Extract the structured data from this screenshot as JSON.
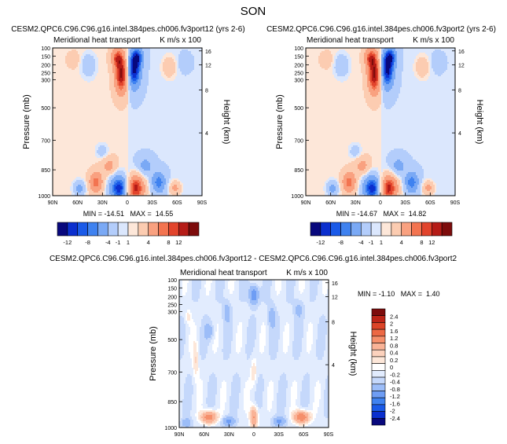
{
  "figure_title": "SON",
  "colors": {
    "ticks_12": [
      "#08087d",
      "#0b2fce",
      "#1a5ae8",
      "#3f82f0",
      "#7aa9f5",
      "#b3cdfb",
      "#dbe7fd",
      "#fde7d9",
      "#fcccb1",
      "#f9a180",
      "#f37450",
      "#e2442c",
      "#b51c17",
      "#7d0c0c"
    ],
    "ticks_diff": [
      "#08087d",
      "#0b2fce",
      "#1a5ae8",
      "#3f82f0",
      "#6e9df4",
      "#9cbdf8",
      "#c5d8fb",
      "#e2ecfe",
      "#ffffff",
      "#fde7d9",
      "#fcd2bd",
      "#f9b397",
      "#f58f6b",
      "#ec6844",
      "#dc4427",
      "#bd2417",
      "#7d0c0c"
    ]
  },
  "chart_data": [
    {
      "id": "top-left",
      "type": "heatmap",
      "title": "CESM2.QPC6.C96.C96.g16.intel.384pes.ch006.fv3port12 (yrs 2-6)",
      "left_label": "Meridional heat transport",
      "right_label": "K m/s x 100",
      "ylabel": "Pressure (mb)",
      "ylabel_right": "Height (km)",
      "y_ticks": [
        "100",
        "150",
        "200",
        "250",
        "300",
        "500",
        "700",
        "850",
        "1000"
      ],
      "y_ticks_right": [
        "16",
        "12",
        "8",
        "4"
      ],
      "x_ticks": [
        "90N",
        "60N",
        "30N",
        "0",
        "30S",
        "60S",
        "90S"
      ],
      "min": "-14.51",
      "max": "14.55",
      "stats": "MIN = -14.51   MAX =  14.55",
      "levels": [
        "-12",
        "-8",
        "-4",
        "-1",
        "1",
        "4",
        "8",
        "12"
      ],
      "vmax": 14
    },
    {
      "id": "top-right",
      "type": "heatmap",
      "title": "CESM2.QPC6.C96.C96.g16.intel.384pes.ch006.fv3port2 (yrs 2-6)",
      "left_label": "Meridional heat transport",
      "right_label": "K m/s x 100",
      "ylabel": "Pressure (mb)",
      "ylabel_right": "Height (km)",
      "y_ticks": [
        "100",
        "150",
        "200",
        "250",
        "300",
        "500",
        "700",
        "850",
        "1000"
      ],
      "y_ticks_right": [
        "16",
        "12",
        "8",
        "4"
      ],
      "x_ticks": [
        "90N",
        "60N",
        "30N",
        "0",
        "30S",
        "60S",
        "90S"
      ],
      "min": "-14.67",
      "max": "14.82",
      "stats": "MIN = -14.67   MAX =  14.82",
      "levels": [
        "-12",
        "-8",
        "-4",
        "-1",
        "1",
        "4",
        "8",
        "12"
      ],
      "vmax": 14
    },
    {
      "id": "difference",
      "type": "heatmap",
      "title": "CESM2.QPC6.C96.C96.g16.intel.384pes.ch006.fv3port12 - CESM2.QPC6.C96.C96.g16.intel.384pes.ch006.fv3port2",
      "left_label": "Meridional heat transport",
      "right_label": "K m/s x 100",
      "ylabel": "Pressure (mb)",
      "ylabel_right": "Height (km)",
      "y_ticks": [
        "100",
        "150",
        "200",
        "250",
        "300",
        "500",
        "700",
        "850",
        "1000"
      ],
      "y_ticks_right": [
        "16",
        "12",
        "8",
        "4"
      ],
      "x_ticks": [
        "90N",
        "60N",
        "30N",
        "0",
        "30S",
        "60S",
        "90S"
      ],
      "min": "-1.10",
      "max": "1.40",
      "stats": "MIN = -1.10   MAX =  1.40",
      "levels": [
        "2.4",
        "2",
        "1.6",
        "1.2",
        "0.8",
        "0.4",
        "0.2",
        "0",
        "-0.2",
        "-0.4",
        "-0.8",
        "-1.2",
        "-1.6",
        "-2",
        "-2.4"
      ],
      "vmax": 2.4
    }
  ]
}
